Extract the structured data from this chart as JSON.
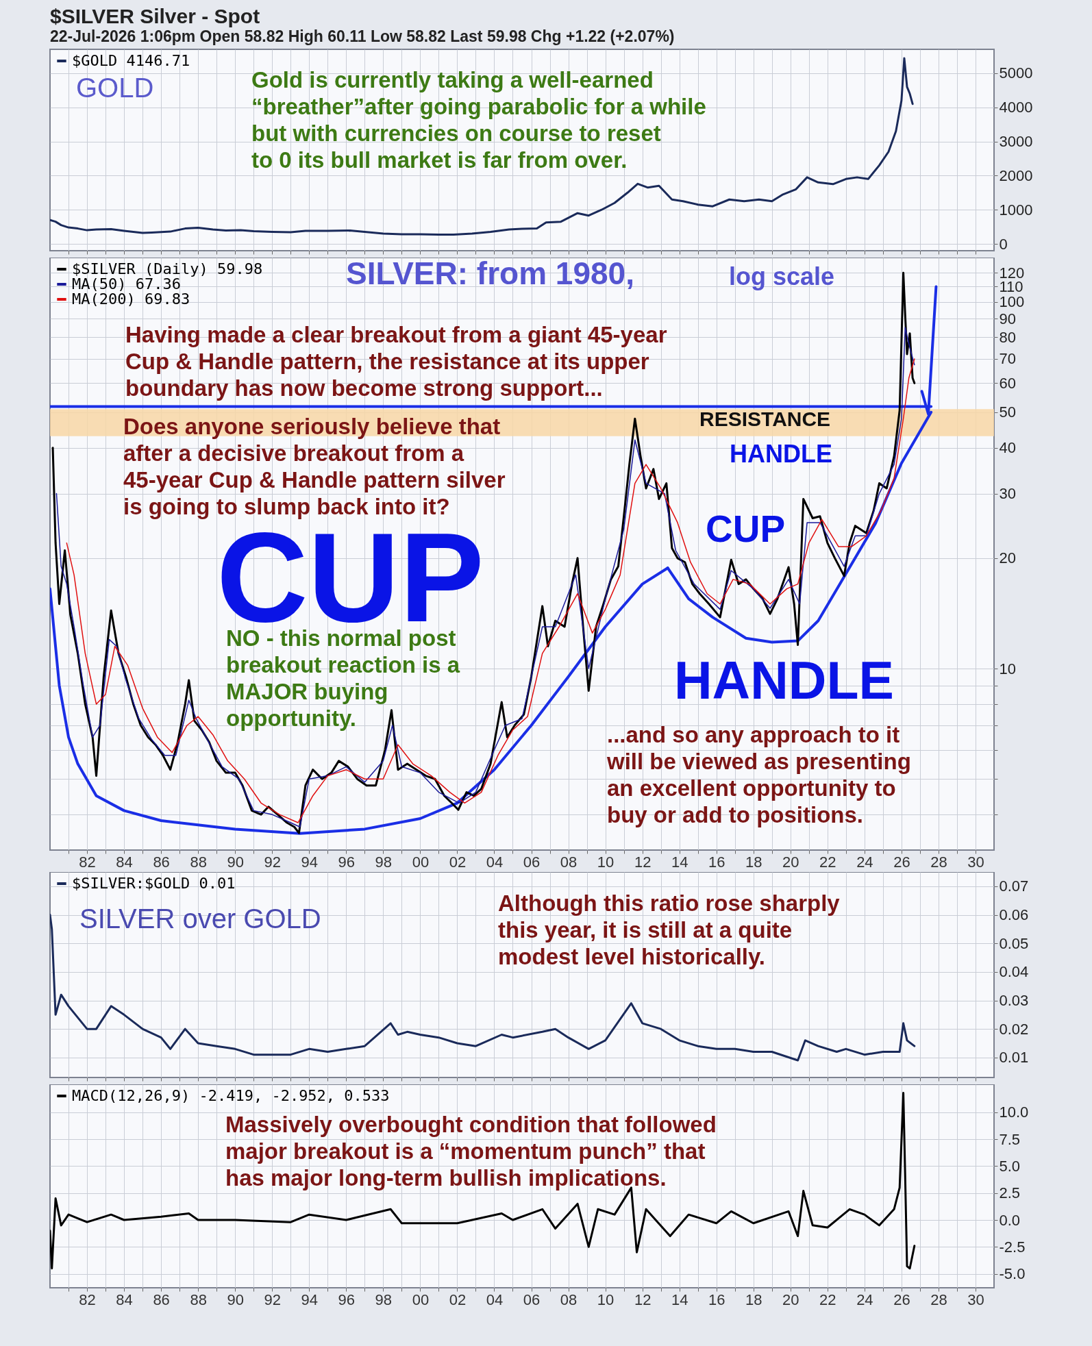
{
  "chart_data": [
    {
      "type": "line",
      "title": "$SILVER Silver - Spot",
      "subtitle": "22-Jul-2026 1:06pm   Open 58.82  High 60.11  Low 58.82  Last 59.98  Chg +1.22 (+2.07%)",
      "xlim": [
        1980,
        2031
      ],
      "ylim": [
        -200,
        5700
      ],
      "yticks": [
        0,
        1000,
        2000,
        3000,
        4000,
        5000
      ],
      "grid": true,
      "legend": "top left",
      "tick_labels": "y",
      "xticks": [
        {
          "value": 1981,
          "label": null
        },
        {
          "value": 1982,
          "label": null
        },
        {
          "value": 1983,
          "label": null
        },
        {
          "value": 1984,
          "label": null
        },
        {
          "value": 1985,
          "label": null
        },
        {
          "value": 1986,
          "label": null
        },
        {
          "value": 1987,
          "label": null
        },
        {
          "value": 1988,
          "label": null
        },
        {
          "value": 1989,
          "label": null
        },
        {
          "value": 1990,
          "label": null
        },
        {
          "value": 1991,
          "label": null
        },
        {
          "value": 1992,
          "label": null
        },
        {
          "value": 1993,
          "label": null
        },
        {
          "value": 1994,
          "label": null
        },
        {
          "value": 1995,
          "label": null
        },
        {
          "value": 1996,
          "label": null
        },
        {
          "value": 1997,
          "label": null
        },
        {
          "value": 1998,
          "label": null
        },
        {
          "value": 1999,
          "label": null
        },
        {
          "value": 2000,
          "label": null
        },
        {
          "value": 2001,
          "label": null
        },
        {
          "value": 2002,
          "label": null
        },
        {
          "value": 2003,
          "label": null
        },
        {
          "value": 2004,
          "label": null
        },
        {
          "value": 2005,
          "label": null
        },
        {
          "value": 2006,
          "label": null
        },
        {
          "value": 2007,
          "label": null
        },
        {
          "value": 2008,
          "label": null
        },
        {
          "value": 2009,
          "label": null
        },
        {
          "value": 2010,
          "label": null
        },
        {
          "value": 2011,
          "label": null
        },
        {
          "value": 2012,
          "label": null
        },
        {
          "value": 2013,
          "label": null
        },
        {
          "value": 2014,
          "label": null
        },
        {
          "value": 2015,
          "label": null
        },
        {
          "value": 2016,
          "label": null
        },
        {
          "value": 2017,
          "label": null
        },
        {
          "value": 2018,
          "label": null
        },
        {
          "value": 2019,
          "label": null
        },
        {
          "value": 2020,
          "label": null
        },
        {
          "value": 2021,
          "label": null
        },
        {
          "value": 2022,
          "label": null
        },
        {
          "value": 2023,
          "label": null
        },
        {
          "value": 2024,
          "label": null
        },
        {
          "value": 2025,
          "label": null
        },
        {
          "value": 2026,
          "label": null
        },
        {
          "value": 2027,
          "label": null
        },
        {
          "value": 2028,
          "label": null
        },
        {
          "value": 2029,
          "label": null
        },
        {
          "value": 2030,
          "label": null
        }
      ],
      "annotations": [
        "GOLD",
        "Gold is currently taking a well-earned\n“breather”after going parabolic for a while\nbut with currencies on course to reset\nto 0 its bull market is far from over."
      ],
      "series": [
        {
          "name": "$GOLD 4146.71",
          "color": "#1a2a5a",
          "x": [
            1980.0,
            1980.3,
            1980.6,
            1981.0,
            1981.5,
            1982.0,
            1982.5,
            1983.3,
            1984.0,
            1985.0,
            1985.5,
            1986.5,
            1987.3,
            1988.0,
            1988.8,
            1989.5,
            1990.3,
            1991.0,
            1992.0,
            1993.0,
            1993.8,
            1995.0,
            1996.2,
            1997.0,
            1998.0,
            1999.0,
            2000.0,
            2001.0,
            2001.8,
            2002.8,
            2003.8,
            2004.8,
            2005.5,
            2006.3,
            2006.8,
            2007.6,
            2008.5,
            2009.1,
            2009.8,
            2010.5,
            2011.2,
            2011.75,
            2012.3,
            2012.9,
            2013.6,
            2014.2,
            2015.0,
            2015.8,
            2016.7,
            2017.5,
            2018.3,
            2019.0,
            2019.6,
            2020.3,
            2020.9,
            2021.5,
            2022.3,
            2023.0,
            2023.6,
            2024.2,
            2024.8,
            2025.3,
            2025.7,
            2026.0,
            2026.15,
            2026.3,
            2026.45,
            2026.6
          ],
          "values": [
            700,
            650,
            550,
            480,
            450,
            400,
            420,
            430,
            380,
            320,
            330,
            360,
            450,
            470,
            420,
            390,
            400,
            370,
            350,
            340,
            380,
            380,
            390,
            350,
            300,
            280,
            280,
            270,
            270,
            300,
            350,
            420,
            440,
            450,
            630,
            650,
            900,
            830,
            1000,
            1200,
            1500,
            1760,
            1650,
            1700,
            1300,
            1250,
            1150,
            1100,
            1300,
            1250,
            1300,
            1250,
            1450,
            1600,
            1950,
            1800,
            1750,
            1900,
            1950,
            1900,
            2300,
            2700,
            3300,
            4200,
            5440,
            4600,
            4400,
            4100
          ]
        }
      ]
    },
    {
      "type": "line",
      "log": true,
      "xlim": [
        1980,
        2031
      ],
      "ylim": [
        3.2,
        132
      ],
      "yticks": [
        {
          "value": 4,
          "label": null
        },
        {
          "value": 5,
          "label": null
        },
        {
          "value": 6,
          "label": null
        },
        {
          "value": 7,
          "label": null
        },
        {
          "value": 8,
          "label": null
        },
        {
          "value": 9,
          "label": null
        },
        10,
        20,
        30,
        40,
        50,
        60,
        70,
        80,
        90,
        100,
        110,
        120
      ],
      "grid": true,
      "legend": "top left",
      "xticks": [
        {
          "value": 1981,
          "label": null
        },
        {
          "value": 1982,
          "label": "82"
        },
        {
          "value": 1983,
          "label": null
        },
        {
          "value": 1984,
          "label": "84"
        },
        {
          "value": 1985,
          "label": null
        },
        {
          "value": 1986,
          "label": "86"
        },
        {
          "value": 1987,
          "label": null
        },
        {
          "value": 1988,
          "label": "88"
        },
        {
          "value": 1989,
          "label": null
        },
        {
          "value": 1990,
          "label": "90"
        },
        {
          "value": 1991,
          "label": null
        },
        {
          "value": 1992,
          "label": "92"
        },
        {
          "value": 1993,
          "label": null
        },
        {
          "value": 1994,
          "label": "94"
        },
        {
          "value": 1995,
          "label": null
        },
        {
          "value": 1996,
          "label": "96"
        },
        {
          "value": 1997,
          "label": null
        },
        {
          "value": 1998,
          "label": "98"
        },
        {
          "value": 1999,
          "label": null
        },
        {
          "value": 2000,
          "label": "00"
        },
        {
          "value": 2001,
          "label": null
        },
        {
          "value": 2002,
          "label": "02"
        },
        {
          "value": 2003,
          "label": null
        },
        {
          "value": 2004,
          "label": "04"
        },
        {
          "value": 2005,
          "label": null
        },
        {
          "value": 2006,
          "label": "06"
        },
        {
          "value": 2007,
          "label": null
        },
        {
          "value": 2008,
          "label": "08"
        },
        {
          "value": 2009,
          "label": null
        },
        {
          "value": 2010,
          "label": "10"
        },
        {
          "value": 2011,
          "label": null
        },
        {
          "value": 2012,
          "label": "12"
        },
        {
          "value": 2013,
          "label": null
        },
        {
          "value": 2014,
          "label": "14"
        },
        {
          "value": 2015,
          "label": null
        },
        {
          "value": 2016,
          "label": "16"
        },
        {
          "value": 2017,
          "label": null
        },
        {
          "value": 2018,
          "label": "18"
        },
        {
          "value": 2019,
          "label": null
        },
        {
          "value": 2020,
          "label": "20"
        },
        {
          "value": 2021,
          "label": null
        },
        {
          "value": 2022,
          "label": "22"
        },
        {
          "value": 2023,
          "label": null
        },
        {
          "value": 2024,
          "label": "24"
        },
        {
          "value": 2025,
          "label": null
        },
        {
          "value": 2026,
          "label": "26"
        },
        {
          "value": 2027,
          "label": null
        },
        {
          "value": 2028,
          "label": "28"
        },
        {
          "value": 2029,
          "label": null
        },
        {
          "value": 2030,
          "label": "30"
        }
      ],
      "bands": [
        {
          "axis": "y",
          "from": 43,
          "to": 51,
          "label": "RESISTANCE",
          "color": "#f8d7a6"
        }
      ],
      "annotations": [
        "SILVER: from 1980,",
        "log scale",
        "Having made a clear breakout from a giant 45-year\nCup & Handle pattern, the resistance at its upper\nboundary has now become strong support...",
        "Does anyone seriously believe that\nafter a decisive breakout from a\n45-year Cup & Handle pattern silver\nis going to slump back into it?",
        "CUP",
        "NO - this normal post\nbreakout reaction is a\nMAJOR buying\nopportunity.",
        "CUP",
        "HANDLE",
        "HANDLE",
        "...and so any approach to it\nwill be viewed as presenting\nan excellent opportunity to\nbuy or add to positions."
      ],
      "series": [
        {
          "color": "#1a2ee6",
          "x": [
            1980.0,
            1980.5,
            1981.0,
            1981.5,
            1982.5,
            1984.0,
            1986.0,
            1990.0,
            1993.5,
            1997.0,
            2000.0,
            2002.0,
            2004.0,
            2006.0,
            2008.0,
            2010.0,
            2012.0,
            2013.37
          ],
          "values": [
            16.5,
            9,
            6.5,
            5.5,
            4.5,
            4.1,
            3.85,
            3.65,
            3.55,
            3.65,
            3.9,
            4.3,
            5.3,
            7,
            9.5,
            13,
            17,
            18.8
          ]
        },
        {
          "color": "#1a2ee6",
          "x": [
            2013.37,
            2014.5,
            2015.8,
            2017.6,
            2019.0,
            2020.4,
            2021.5,
            2022.7,
            2024.6,
            2026.0,
            2027.6
          ],
          "values": [
            18.8,
            15.5,
            13.8,
            12.1,
            11.8,
            11.9,
            13.5,
            17.1,
            24.9,
            36.3,
            50
          ]
        },
        {
          "color": "#1a2ee6",
          "x": [
            1980.0,
            2027.6
          ],
          "values": [
            51.8,
            51.8
          ]
        },
        {
          "color": "#1a2ee6",
          "x": [
            2027.1,
            2027.45,
            2027.87
          ],
          "values": [
            57,
            49.4,
            110
          ]
        },
        {
          "name": "$SILVER (Daily) 59.98",
          "color": "#000000",
          "x": [
            1980.15,
            1980.3,
            1980.5,
            1980.8,
            1981.1,
            1981.5,
            1981.9,
            1982.3,
            1982.5,
            1982.9,
            1983.3,
            1983.7,
            1984.1,
            1984.5,
            1984.9,
            1985.3,
            1985.7,
            1986.1,
            1986.5,
            1986.9,
            1987.3,
            1987.5,
            1987.8,
            1988.2,
            1988.6,
            1989.0,
            1989.5,
            1990.0,
            1990.4,
            1990.9,
            1991.4,
            1991.8,
            1992.3,
            1992.8,
            1993.2,
            1993.45,
            1993.8,
            1994.2,
            1994.7,
            1995.2,
            1995.6,
            1996.1,
            1996.6,
            1997.1,
            1997.6,
            1998.1,
            1998.45,
            1998.8,
            1999.3,
            1999.8,
            2000.3,
            2000.8,
            2001.3,
            2001.7,
            2002.06,
            2002.5,
            2002.9,
            2003.3,
            2003.8,
            2004.4,
            2004.7,
            2005.1,
            2005.6,
            2006.0,
            2006.6,
            2006.9,
            2007.3,
            2007.8,
            2008.2,
            2008.5,
            2008.8,
            2009.1,
            2009.5,
            2009.9,
            2010.3,
            2010.7,
            2011.0,
            2011.3,
            2011.6,
            2011.9,
            2012.2,
            2012.6,
            2012.9,
            2013.3,
            2013.6,
            2013.9,
            2014.3,
            2014.7,
            2015.1,
            2015.6,
            2016.2,
            2016.8,
            2017.2,
            2017.6,
            2018.0,
            2018.5,
            2018.9,
            2019.3,
            2019.9,
            2020.2,
            2020.4,
            2020.7,
            2021.2,
            2021.6,
            2022.0,
            2022.4,
            2022.9,
            2023.2,
            2023.5,
            2024.1,
            2024.5,
            2024.8,
            2025.2,
            2025.6,
            2025.9,
            2026.1,
            2026.2,
            2026.3,
            2026.45,
            2026.6,
            2026.7
          ],
          "values": [
            40,
            22,
            15,
            21,
            14,
            11,
            8,
            6.5,
            5.1,
            9.5,
            14.4,
            11,
            9.5,
            8,
            7,
            6.5,
            6.2,
            5.8,
            5.3,
            6.3,
            8,
            9.3,
            7.2,
            6.8,
            6.3,
            5.6,
            5.2,
            5.2,
            4.8,
            4.1,
            4,
            4.2,
            4,
            3.8,
            3.7,
            3.56,
            4.8,
            5.3,
            5,
            5.2,
            5.6,
            5.4,
            5,
            4.8,
            4.8,
            6,
            7.7,
            5.3,
            5.5,
            5.3,
            5.1,
            5,
            4.5,
            4.3,
            4.12,
            4.6,
            4.5,
            4.7,
            5.5,
            8.1,
            6.5,
            7,
            7.5,
            9.5,
            14.8,
            11.5,
            13.5,
            13,
            17,
            20,
            13,
            8.7,
            13,
            15,
            17.5,
            19,
            26,
            36,
            48,
            38,
            31,
            35,
            29,
            32,
            21.3,
            20,
            19.5,
            17,
            16,
            15,
            13.8,
            19.8,
            17,
            17.5,
            16.5,
            15.5,
            14.1,
            15.5,
            18.9,
            15,
            11.6,
            29,
            25.7,
            26,
            22,
            20,
            17.9,
            22,
            24.5,
            23.4,
            27,
            32,
            31,
            37.9,
            50.6,
            120,
            92,
            72,
            82,
            62,
            60
          ]
        },
        {
          "name": "MA(50) 67.36",
          "color": "#1a1a9a",
          "x": [
            1980.35,
            1980.6,
            1980.9,
            1981.3,
            1981.8,
            1982.3,
            1982.7,
            1983.2,
            1983.6,
            1984.1,
            1984.8,
            1985.5,
            1986.2,
            1986.8,
            1987.5,
            1987.9,
            1988.5,
            1989.3,
            1990.2,
            1991.0,
            1992.0,
            1993.0,
            1993.5,
            1994.0,
            1995.0,
            1996.0,
            1997.0,
            1998.0,
            1998.5,
            1999.0,
            2000.0,
            2001.0,
            2002.1,
            2003.0,
            2004.0,
            2004.6,
            2005.5,
            2006.6,
            2007.3,
            2008.4,
            2009.1,
            2010.0,
            2011.0,
            2011.6,
            2012.2,
            2013.2,
            2013.8,
            2014.8,
            2016.2,
            2016.8,
            2018.0,
            2018.9,
            2019.9,
            2020.5,
            2020.9,
            2021.6,
            2022.9,
            2023.5,
            2024.1,
            2024.8,
            2025.6,
            2026.0,
            2026.2,
            2026.45,
            2026.7
          ],
          "values": [
            30,
            19,
            17,
            13,
            9,
            6.5,
            7,
            12,
            11.5,
            9.3,
            7.3,
            6.4,
            5.8,
            5.8,
            8.2,
            7.3,
            6.4,
            5.4,
            5,
            4.1,
            4,
            3.8,
            3.7,
            5,
            5.1,
            5.4,
            4.9,
            5.6,
            7,
            5.4,
            5.2,
            4.6,
            4.3,
            4.6,
            6,
            7,
            7.3,
            13,
            13,
            18,
            10,
            15.5,
            24,
            42,
            32,
            30,
            21,
            17,
            14.5,
            18.5,
            16.5,
            14.6,
            17.5,
            15,
            25,
            25,
            19,
            23,
            23,
            30,
            36,
            48,
            85,
            75,
            67.36
          ]
        },
        {
          "name": "MA(200) 69.83",
          "color": "#e01010",
          "x": [
            1980.9,
            1981.3,
            1981.9,
            1982.5,
            1983.0,
            1983.5,
            1984.2,
            1985.0,
            1985.8,
            1986.6,
            1987.4,
            1988.0,
            1988.8,
            1989.6,
            1990.5,
            1991.4,
            1992.4,
            1993.4,
            1994.2,
            1995.0,
            1996.0,
            1997.0,
            1998.0,
            1998.8,
            1999.6,
            2000.6,
            2001.6,
            2002.4,
            2003.3,
            2004.2,
            2005.0,
            2005.8,
            2006.6,
            2007.5,
            2008.5,
            2009.3,
            2010.0,
            2010.8,
            2011.6,
            2012.2,
            2013.0,
            2013.9,
            2014.6,
            2015.5,
            2016.2,
            2016.9,
            2017.8,
            2018.9,
            2019.8,
            2020.4,
            2021.0,
            2021.7,
            2022.6,
            2023.3,
            2024.1,
            2024.9,
            2025.6,
            2026.1,
            2026.4,
            2026.7
          ],
          "values": [
            22,
            18,
            11,
            8,
            8.5,
            11.5,
            10.2,
            7.8,
            6.5,
            5.9,
            7,
            7.4,
            6.6,
            5.6,
            5,
            4.3,
            4,
            3.8,
            4.5,
            5.1,
            5.3,
            5,
            5,
            6.2,
            5.5,
            5.1,
            4.6,
            4.3,
            4.6,
            5.8,
            6.8,
            7.4,
            11,
            13,
            16,
            12.5,
            14.5,
            18,
            32,
            36,
            31,
            25,
            19.5,
            16,
            15,
            17.5,
            17,
            15,
            16.5,
            17,
            22,
            25.5,
            21.5,
            21.5,
            23,
            27,
            33,
            48,
            62,
            69.83
          ]
        }
      ]
    },
    {
      "type": "line",
      "xlim": [
        1980,
        2031
      ],
      "ylim": [
        0.003,
        0.075
      ],
      "yticks": [
        0.01,
        0.02,
        0.03,
        0.04,
        0.05,
        0.06,
        0.07
      ],
      "grid": true,
      "legend": "top left",
      "tick_labels": "y",
      "xticks": [
        {
          "value": 1981,
          "label": null
        },
        {
          "value": 1982,
          "label": null
        },
        {
          "value": 1983,
          "label": null
        },
        {
          "value": 1984,
          "label": null
        },
        {
          "value": 1985,
          "label": null
        },
        {
          "value": 1986,
          "label": null
        },
        {
          "value": 1987,
          "label": null
        },
        {
          "value": 1988,
          "label": null
        },
        {
          "value": 1989,
          "label": null
        },
        {
          "value": 1990,
          "label": null
        },
        {
          "value": 1991,
          "label": null
        },
        {
          "value": 1992,
          "label": null
        },
        {
          "value": 1993,
          "label": null
        },
        {
          "value": 1994,
          "label": null
        },
        {
          "value": 1995,
          "label": null
        },
        {
          "value": 1996,
          "label": null
        },
        {
          "value": 1997,
          "label": null
        },
        {
          "value": 1998,
          "label": null
        },
        {
          "value": 1999,
          "label": null
        },
        {
          "value": 2000,
          "label": null
        },
        {
          "value": 2001,
          "label": null
        },
        {
          "value": 2002,
          "label": null
        },
        {
          "value": 2003,
          "label": null
        },
        {
          "value": 2004,
          "label": null
        },
        {
          "value": 2005,
          "label": null
        },
        {
          "value": 2006,
          "label": null
        },
        {
          "value": 2007,
          "label": null
        },
        {
          "value": 2008,
          "label": null
        },
        {
          "value": 2009,
          "label": null
        },
        {
          "value": 2010,
          "label": null
        },
        {
          "value": 2011,
          "label": null
        },
        {
          "value": 2012,
          "label": null
        },
        {
          "value": 2013,
          "label": null
        },
        {
          "value": 2014,
          "label": null
        },
        {
          "value": 2015,
          "label": null
        },
        {
          "value": 2016,
          "label": null
        },
        {
          "value": 2017,
          "label": null
        },
        {
          "value": 2018,
          "label": null
        },
        {
          "value": 2019,
          "label": null
        },
        {
          "value": 2020,
          "label": null
        },
        {
          "value": 2021,
          "label": null
        },
        {
          "value": 2022,
          "label": null
        },
        {
          "value": 2023,
          "label": null
        },
        {
          "value": 2024,
          "label": null
        },
        {
          "value": 2025,
          "label": null
        },
        {
          "value": 2026,
          "label": null
        },
        {
          "value": 2027,
          "label": null
        },
        {
          "value": 2028,
          "label": null
        },
        {
          "value": 2029,
          "label": null
        },
        {
          "value": 2030,
          "label": null
        }
      ],
      "annotations": [
        "SILVER over GOLD",
        "Although this ratio rose sharply\nthis year, it is still at a quite\nmodest level historically."
      ],
      "series": [
        {
          "name": "$SILVER:$GOLD 0.01",
          "color": "#1a2a5a",
          "x": [
            1980.0,
            1980.1,
            1980.3,
            1980.6,
            1981.0,
            1982.0,
            1982.5,
            1983.3,
            1984.0,
            1985.0,
            1986.0,
            1986.5,
            1987.3,
            1988.0,
            1989.0,
            1990.0,
            1991.0,
            1993.0,
            1994.0,
            1995.0,
            1996.0,
            1997.0,
            1998.4,
            1998.8,
            1999.3,
            2000.0,
            2001.0,
            2002.0,
            2003.0,
            2004.4,
            2005.0,
            2006.6,
            2007.3,
            2008.0,
            2009.1,
            2010.0,
            2011.4,
            2012.0,
            2013.0,
            2014.0,
            2015.0,
            2016.0,
            2017.0,
            2018.0,
            2019.0,
            2020.4,
            2020.8,
            2021.5,
            2022.5,
            2023.0,
            2024.0,
            2025.0,
            2025.9,
            2026.1,
            2026.3,
            2026.7
          ],
          "values": [
            0.06,
            0.055,
            0.025,
            0.032,
            0.028,
            0.02,
            0.02,
            0.028,
            0.025,
            0.02,
            0.017,
            0.013,
            0.02,
            0.015,
            0.014,
            0.013,
            0.011,
            0.011,
            0.013,
            0.012,
            0.013,
            0.014,
            0.022,
            0.018,
            0.019,
            0.018,
            0.017,
            0.015,
            0.014,
            0.018,
            0.017,
            0.019,
            0.02,
            0.017,
            0.013,
            0.016,
            0.029,
            0.022,
            0.02,
            0.016,
            0.014,
            0.013,
            0.013,
            0.012,
            0.012,
            0.009,
            0.016,
            0.014,
            0.012,
            0.013,
            0.011,
            0.012,
            0.012,
            0.022,
            0.016,
            0.014
          ]
        }
      ]
    },
    {
      "type": "line",
      "xlim": [
        1980,
        2031
      ],
      "ylim": [
        -6.3,
        12.6
      ],
      "yticks": [
        {
          "value": 10,
          "label": "10.0"
        },
        7.5,
        {
          "value": 5,
          "label": "5.0"
        },
        2.5,
        {
          "value": 0,
          "label": "0.0"
        },
        -2.5,
        {
          "value": -5,
          "label": "-5.0"
        }
      ],
      "grid": true,
      "legend": "top left",
      "xticks": [
        {
          "value": 1981,
          "label": null
        },
        {
          "value": 1982,
          "label": "82"
        },
        {
          "value": 1983,
          "label": null
        },
        {
          "value": 1984,
          "label": "84"
        },
        {
          "value": 1985,
          "label": null
        },
        {
          "value": 1986,
          "label": "86"
        },
        {
          "value": 1987,
          "label": null
        },
        {
          "value": 1988,
          "label": "88"
        },
        {
          "value": 1989,
          "label": null
        },
        {
          "value": 1990,
          "label": "90"
        },
        {
          "value": 1991,
          "label": null
        },
        {
          "value": 1992,
          "label": "92"
        },
        {
          "value": 1993,
          "label": null
        },
        {
          "value": 1994,
          "label": "94"
        },
        {
          "value": 1995,
          "label": null
        },
        {
          "value": 1996,
          "label": "96"
        },
        {
          "value": 1997,
          "label": null
        },
        {
          "value": 1998,
          "label": "98"
        },
        {
          "value": 1999,
          "label": null
        },
        {
          "value": 2000,
          "label": "00"
        },
        {
          "value": 2001,
          "label": null
        },
        {
          "value": 2002,
          "label": "02"
        },
        {
          "value": 2003,
          "label": null
        },
        {
          "value": 2004,
          "label": "04"
        },
        {
          "value": 2005,
          "label": null
        },
        {
          "value": 2006,
          "label": "06"
        },
        {
          "value": 2007,
          "label": null
        },
        {
          "value": 2008,
          "label": "08"
        },
        {
          "value": 2009,
          "label": null
        },
        {
          "value": 2010,
          "label": "10"
        },
        {
          "value": 2011,
          "label": null
        },
        {
          "value": 2012,
          "label": "12"
        },
        {
          "value": 2013,
          "label": null
        },
        {
          "value": 2014,
          "label": "14"
        },
        {
          "value": 2015,
          "label": null
        },
        {
          "value": 2016,
          "label": "16"
        },
        {
          "value": 2017,
          "label": null
        },
        {
          "value": 2018,
          "label": "18"
        },
        {
          "value": 2019,
          "label": null
        },
        {
          "value": 2020,
          "label": "20"
        },
        {
          "value": 2021,
          "label": null
        },
        {
          "value": 2022,
          "label": "22"
        },
        {
          "value": 2023,
          "label": null
        },
        {
          "value": 2024,
          "label": "24"
        },
        {
          "value": 2025,
          "label": null
        },
        {
          "value": 2026,
          "label": "26"
        },
        {
          "value": 2027,
          "label": null
        },
        {
          "value": 2028,
          "label": "28"
        },
        {
          "value": 2029,
          "label": null
        },
        {
          "value": 2030,
          "label": "30"
        }
      ],
      "annotations": [
        "Massively overbought condition that followed\nmajor breakout is a “momentum punch” that\nhas major long-term bullish implications."
      ],
      "series": [
        {
          "name": "MACD(12,26,9) -2.419, -2.952, 0.533",
          "color": "#000000",
          "x": [
            1980.0,
            1980.1,
            1980.3,
            1980.6,
            1981.0,
            1982.0,
            1983.3,
            1984.0,
            1986.0,
            1987.5,
            1988.0,
            1990.0,
            1993.0,
            1994.0,
            1996.0,
            1998.4,
            1999.0,
            2002.0,
            2004.4,
            2005.0,
            2006.6,
            2007.3,
            2008.5,
            2009.1,
            2009.6,
            2010.5,
            2011.4,
            2011.7,
            2012.2,
            2013.5,
            2014.5,
            2016.0,
            2016.8,
            2018.0,
            2019.9,
            2020.4,
            2020.7,
            2021.2,
            2022.0,
            2023.2,
            2024.0,
            2024.8,
            2025.6,
            2025.9,
            2026.1,
            2026.2,
            2026.3,
            2026.45,
            2026.7
          ],
          "values": [
            -1,
            -4.5,
            2,
            -0.5,
            0.5,
            -0.2,
            0.5,
            0,
            0.3,
            0.6,
            0,
            0,
            -0.2,
            0.5,
            0,
            1,
            -0.3,
            -0.3,
            0.6,
            0,
            1,
            -0.8,
            1.5,
            -2.5,
            1,
            0.5,
            3,
            -3,
            1,
            -1.5,
            0.5,
            -0.3,
            0.8,
            -0.3,
            0.8,
            -1.5,
            2.7,
            -0.5,
            -0.7,
            1,
            0.5,
            -0.5,
            1,
            3,
            11.8,
            4,
            -4.3,
            -4.5,
            -2.4
          ]
        }
      ]
    }
  ]
}
